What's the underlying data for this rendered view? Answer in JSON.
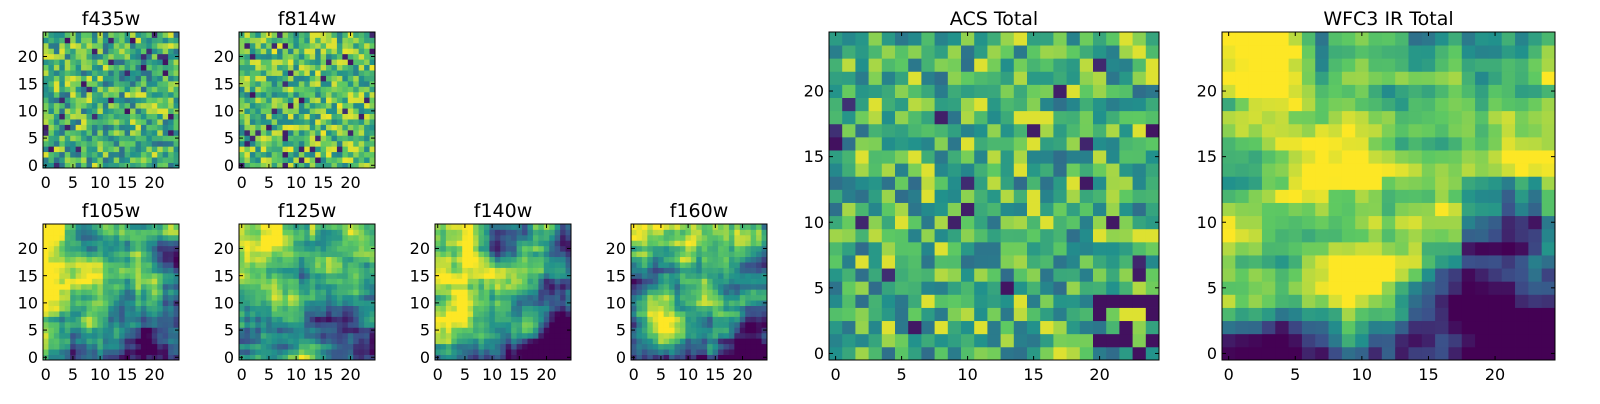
{
  "figure": {
    "colormap": [
      "#440154",
      "#3b528b",
      "#21918c",
      "#5ec962",
      "#fde725"
    ]
  },
  "chart_data": [
    {
      "type": "heatmap",
      "title": "f435w",
      "grid_size": 25,
      "xlim": [
        -0.5,
        24.5
      ],
      "ylim": [
        -0.5,
        24.5
      ],
      "x_ticks": [
        0,
        5,
        10,
        15,
        20
      ],
      "y_ticks": [
        0,
        5,
        10,
        15,
        20
      ],
      "pattern": "noise",
      "seed": 11,
      "grid": false
    },
    {
      "type": "heatmap",
      "title": "f814w",
      "grid_size": 25,
      "xlim": [
        -0.5,
        24.5
      ],
      "ylim": [
        -0.5,
        24.5
      ],
      "x_ticks": [
        0,
        5,
        10,
        15,
        20
      ],
      "y_ticks": [
        0,
        5,
        10,
        15,
        20
      ],
      "pattern": "noise_bright",
      "seed": 23,
      "grid": false
    },
    {
      "type": "heatmap",
      "title": "f105w",
      "grid_size": 25,
      "xlim": [
        -0.5,
        24.5
      ],
      "ylim": [
        -0.5,
        24.5
      ],
      "x_ticks": [
        0,
        5,
        10,
        15,
        20
      ],
      "y_ticks": [
        0,
        5,
        10,
        15,
        20
      ],
      "pattern": "smooth",
      "seed": 37,
      "grid": false
    },
    {
      "type": "heatmap",
      "title": "f125w",
      "grid_size": 25,
      "xlim": [
        -0.5,
        24.5
      ],
      "ylim": [
        -0.5,
        24.5
      ],
      "x_ticks": [
        0,
        5,
        10,
        15,
        20
      ],
      "y_ticks": [
        0,
        5,
        10,
        15,
        20
      ],
      "pattern": "smooth",
      "seed": 41,
      "grid": false
    },
    {
      "type": "heatmap",
      "title": "f140w",
      "grid_size": 25,
      "xlim": [
        -0.5,
        24.5
      ],
      "ylim": [
        -0.5,
        24.5
      ],
      "x_ticks": [
        0,
        5,
        10,
        15,
        20
      ],
      "y_ticks": [
        0,
        5,
        10,
        15,
        20
      ],
      "pattern": "smooth",
      "seed": 53,
      "grid": false
    },
    {
      "type": "heatmap",
      "title": "f160w",
      "grid_size": 25,
      "xlim": [
        -0.5,
        24.5
      ],
      "ylim": [
        -0.5,
        24.5
      ],
      "x_ticks": [
        0,
        5,
        10,
        15,
        20
      ],
      "y_ticks": [
        0,
        5,
        10,
        15,
        20
      ],
      "pattern": "smooth",
      "seed": 67,
      "grid": false
    },
    {
      "type": "heatmap",
      "title": "ACS Total",
      "grid_size": 25,
      "xlim": [
        -0.5,
        24.5
      ],
      "ylim": [
        -0.5,
        24.5
      ],
      "x_ticks": [
        0,
        5,
        10,
        15,
        20
      ],
      "y_ticks": [
        0,
        5,
        10,
        15,
        20
      ],
      "pattern": "noise_mid",
      "seed": 79,
      "grid": false
    },
    {
      "type": "heatmap",
      "title": "WFC3 IR Total",
      "grid_size": 25,
      "xlim": [
        -0.5,
        24.5
      ],
      "ylim": [
        -0.5,
        24.5
      ],
      "x_ticks": [
        0,
        5,
        10,
        15,
        20
      ],
      "y_ticks": [
        0,
        5,
        10,
        15,
        20
      ],
      "pattern": "smooth_strong",
      "seed": 97,
      "grid": false
    }
  ]
}
